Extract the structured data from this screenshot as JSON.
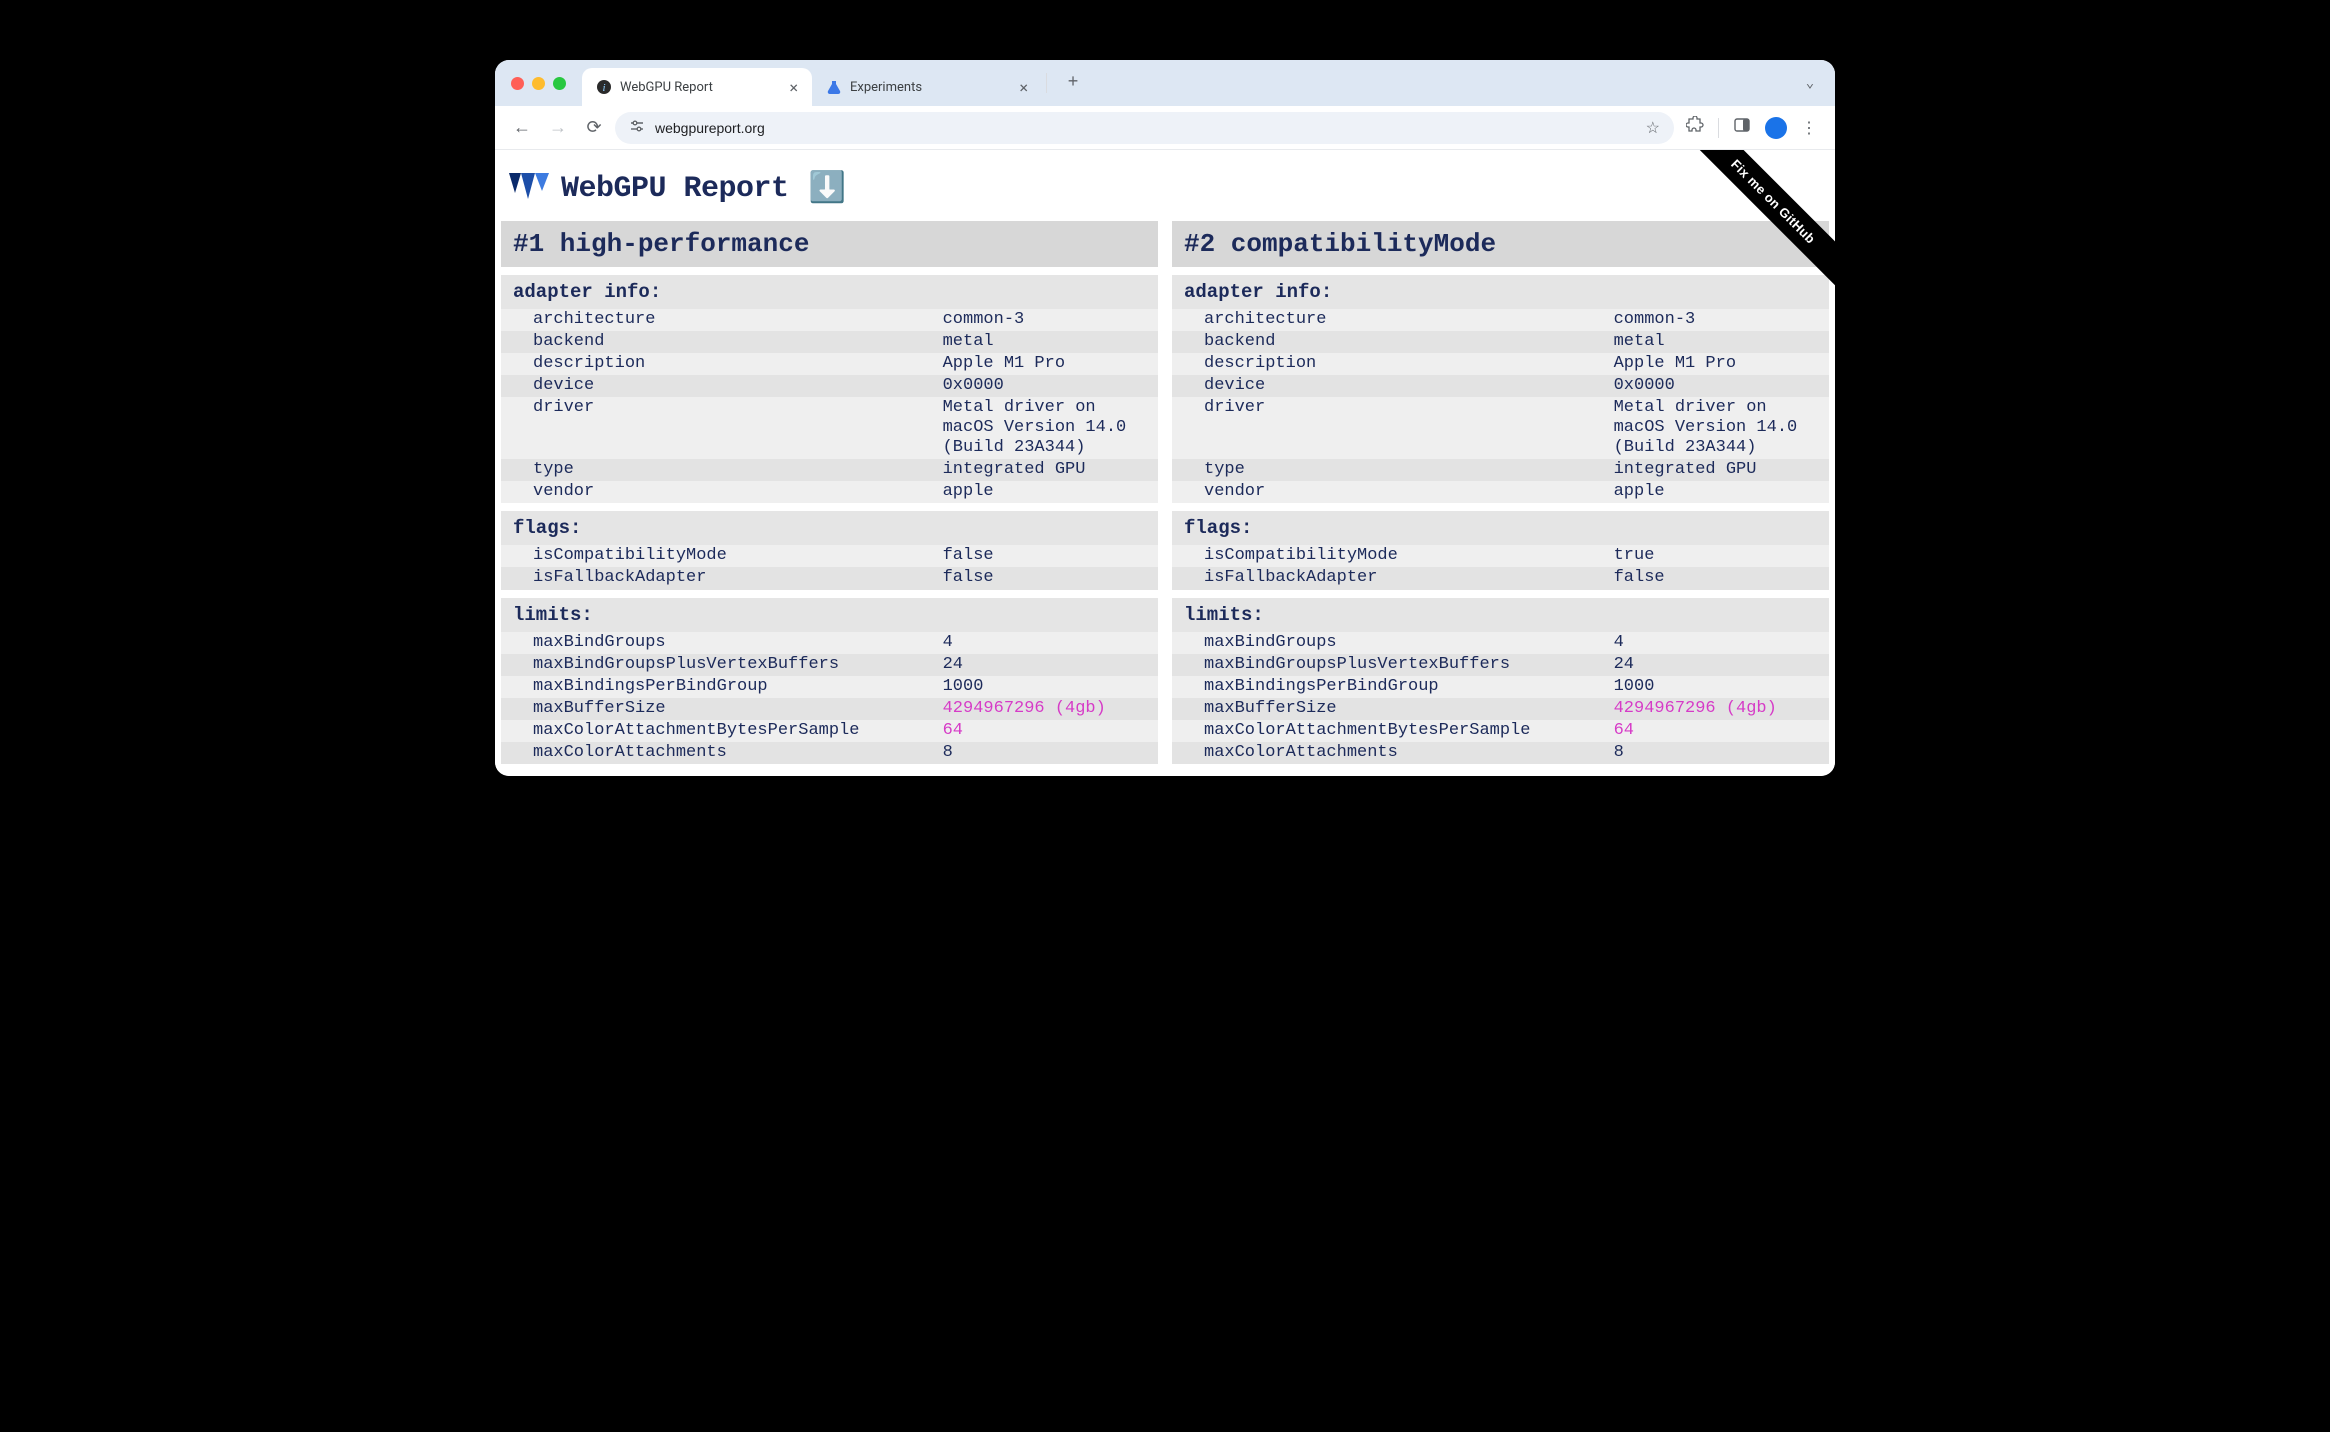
{
  "browser": {
    "tabs": [
      {
        "title": "WebGPU Report",
        "active": true,
        "icon": "info"
      },
      {
        "title": "Experiments",
        "active": false,
        "icon": "flask"
      }
    ],
    "url": "webgpureport.org"
  },
  "page": {
    "title": "WebGPU Report",
    "ribbon": "Fix me on GitHub",
    "colors": {
      "heading_bg": "#d7d7d7",
      "section_bg": "#e5e5e5",
      "row_odd": "#efefef",
      "row_even": "#e3e3e3",
      "text": "#1c2a5a",
      "highlight": "#d63bc7"
    }
  },
  "adapters": [
    {
      "heading": "#1 high-performance",
      "sections": [
        {
          "title": "adapter info:",
          "rows": [
            {
              "k": "architecture",
              "v": "common-3"
            },
            {
              "k": "backend",
              "v": "metal"
            },
            {
              "k": "description",
              "v": "Apple M1 Pro"
            },
            {
              "k": "device",
              "v": "0x0000"
            },
            {
              "k": "driver",
              "v": "Metal driver on macOS Version 14.0 (Build 23A344)"
            },
            {
              "k": "type",
              "v": "integrated GPU"
            },
            {
              "k": "vendor",
              "v": "apple"
            }
          ]
        },
        {
          "title": "flags:",
          "rows": [
            {
              "k": "isCompatibilityMode",
              "v": "false"
            },
            {
              "k": "isFallbackAdapter",
              "v": "false"
            }
          ]
        },
        {
          "title": "limits:",
          "rows": [
            {
              "k": "maxBindGroups",
              "v": "4"
            },
            {
              "k": "maxBindGroupsPlusVertexBuffers",
              "v": "24"
            },
            {
              "k": "maxBindingsPerBindGroup",
              "v": "1000"
            },
            {
              "k": "maxBufferSize",
              "v": "4294967296 (4gb)",
              "hl": true
            },
            {
              "k": "maxColorAttachmentBytesPerSample",
              "v": "64",
              "hl": true
            },
            {
              "k": "maxColorAttachments",
              "v": "8"
            }
          ]
        }
      ]
    },
    {
      "heading": "#2 compatibilityMode",
      "sections": [
        {
          "title": "adapter info:",
          "rows": [
            {
              "k": "architecture",
              "v": "common-3"
            },
            {
              "k": "backend",
              "v": "metal"
            },
            {
              "k": "description",
              "v": "Apple M1 Pro"
            },
            {
              "k": "device",
              "v": "0x0000"
            },
            {
              "k": "driver",
              "v": "Metal driver on macOS Version 14.0 (Build 23A344)"
            },
            {
              "k": "type",
              "v": "integrated GPU"
            },
            {
              "k": "vendor",
              "v": "apple"
            }
          ]
        },
        {
          "title": "flags:",
          "rows": [
            {
              "k": "isCompatibilityMode",
              "v": "true"
            },
            {
              "k": "isFallbackAdapter",
              "v": "false"
            }
          ]
        },
        {
          "title": "limits:",
          "rows": [
            {
              "k": "maxBindGroups",
              "v": "4"
            },
            {
              "k": "maxBindGroupsPlusVertexBuffers",
              "v": "24"
            },
            {
              "k": "maxBindingsPerBindGroup",
              "v": "1000"
            },
            {
              "k": "maxBufferSize",
              "v": "4294967296 (4gb)",
              "hl": true
            },
            {
              "k": "maxColorAttachmentBytesPerSample",
              "v": "64",
              "hl": true
            },
            {
              "k": "maxColorAttachments",
              "v": "8"
            }
          ]
        }
      ]
    }
  ]
}
